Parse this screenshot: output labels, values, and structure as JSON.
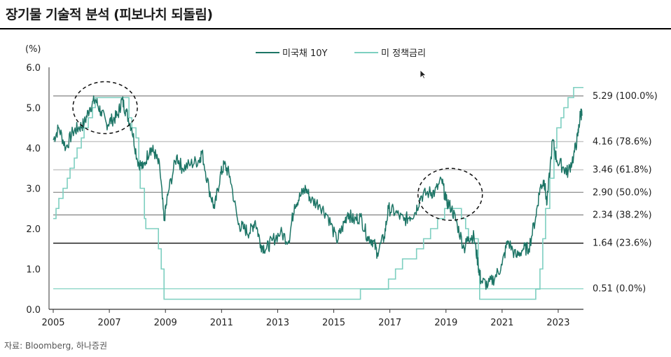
{
  "title": "장기물 기술적 분석 (피보나치 되돌림)",
  "source": "자료: Bloomberg, 하나증권",
  "chart_data": {
    "type": "line",
    "ylabel": "(%)",
    "ylim": [
      0,
      6
    ],
    "y_ticks": [
      "0.0",
      "1.0",
      "2.0",
      "3.0",
      "4.0",
      "5.0",
      "6.0"
    ],
    "xlim": [
      2005,
      2023.9
    ],
    "x_ticks": [
      "2005",
      "2007",
      "2009",
      "2011",
      "2013",
      "2015",
      "2017",
      "2019",
      "2021",
      "2023"
    ],
    "legend_position": "top-center",
    "series": [
      {
        "name": "미국채 10Y",
        "color": "#1d7566",
        "points": [
          [
            2005.0,
            4.2
          ],
          [
            2005.2,
            4.5
          ],
          [
            2005.45,
            4.0
          ],
          [
            2005.7,
            4.4
          ],
          [
            2005.9,
            4.5
          ],
          [
            2006.1,
            4.6
          ],
          [
            2006.3,
            5.0
          ],
          [
            2006.5,
            5.2
          ],
          [
            2006.7,
            4.9
          ],
          [
            2006.9,
            4.6
          ],
          [
            2007.1,
            4.7
          ],
          [
            2007.3,
            4.8
          ],
          [
            2007.45,
            5.2
          ],
          [
            2007.6,
            4.9
          ],
          [
            2007.8,
            4.5
          ],
          [
            2008.0,
            3.7
          ],
          [
            2008.2,
            3.5
          ],
          [
            2008.45,
            4.0
          ],
          [
            2008.6,
            3.9
          ],
          [
            2008.8,
            3.5
          ],
          [
            2008.95,
            2.2
          ],
          [
            2009.1,
            2.9
          ],
          [
            2009.4,
            3.8
          ],
          [
            2009.6,
            3.5
          ],
          [
            2009.9,
            3.6
          ],
          [
            2010.2,
            3.7
          ],
          [
            2010.3,
            3.9
          ],
          [
            2010.55,
            3.0
          ],
          [
            2010.75,
            2.5
          ],
          [
            2010.95,
            3.3
          ],
          [
            2011.1,
            3.6
          ],
          [
            2011.3,
            3.3
          ],
          [
            2011.6,
            2.1
          ],
          [
            2011.8,
            2.0
          ],
          [
            2012.0,
            1.9
          ],
          [
            2012.2,
            2.2
          ],
          [
            2012.4,
            1.6
          ],
          [
            2012.6,
            1.5
          ],
          [
            2012.8,
            1.7
          ],
          [
            2013.1,
            1.9
          ],
          [
            2013.4,
            1.7
          ],
          [
            2013.6,
            2.6
          ],
          [
            2013.8,
            2.8
          ],
          [
            2014.0,
            3.0
          ],
          [
            2014.2,
            2.7
          ],
          [
            2014.5,
            2.6
          ],
          [
            2014.8,
            2.3
          ],
          [
            2015.1,
            1.7
          ],
          [
            2015.3,
            2.0
          ],
          [
            2015.5,
            2.4
          ],
          [
            2015.7,
            2.2
          ],
          [
            2015.95,
            2.3
          ],
          [
            2016.2,
            1.8
          ],
          [
            2016.4,
            1.7
          ],
          [
            2016.55,
            1.4
          ],
          [
            2016.8,
            1.8
          ],
          [
            2016.95,
            2.5
          ],
          [
            2017.2,
            2.4
          ],
          [
            2017.5,
            2.2
          ],
          [
            2017.7,
            2.3
          ],
          [
            2017.9,
            2.4
          ],
          [
            2018.1,
            2.8
          ],
          [
            2018.4,
            2.9
          ],
          [
            2018.6,
            2.9
          ],
          [
            2018.85,
            3.2
          ],
          [
            2019.0,
            2.7
          ],
          [
            2019.2,
            2.5
          ],
          [
            2019.4,
            2.1
          ],
          [
            2019.65,
            1.5
          ],
          [
            2019.8,
            1.8
          ],
          [
            2020.0,
            1.8
          ],
          [
            2020.15,
            1.1
          ],
          [
            2020.25,
            0.7
          ],
          [
            2020.5,
            0.6
          ],
          [
            2020.75,
            0.8
          ],
          [
            2021.0,
            1.1
          ],
          [
            2021.2,
            1.7
          ],
          [
            2021.5,
            1.3
          ],
          [
            2021.75,
            1.5
          ],
          [
            2021.95,
            1.5
          ],
          [
            2022.2,
            2.3
          ],
          [
            2022.35,
            3.0
          ],
          [
            2022.5,
            3.2
          ],
          [
            2022.6,
            2.6
          ],
          [
            2022.8,
            4.2
          ],
          [
            2022.95,
            3.7
          ],
          [
            2023.2,
            3.5
          ],
          [
            2023.35,
            3.4
          ],
          [
            2023.55,
            3.8
          ],
          [
            2023.7,
            4.3
          ],
          [
            2023.8,
            4.9
          ],
          [
            2023.85,
            4.8
          ]
        ]
      },
      {
        "name": "미 정책금리",
        "color": "#7dcfc0",
        "points": [
          [
            2005.0,
            2.25
          ],
          [
            2005.1,
            2.5
          ],
          [
            2005.2,
            2.75
          ],
          [
            2005.35,
            3.0
          ],
          [
            2005.5,
            3.25
          ],
          [
            2005.6,
            3.5
          ],
          [
            2005.75,
            3.75
          ],
          [
            2005.85,
            4.0
          ],
          [
            2006.0,
            4.25
          ],
          [
            2006.1,
            4.5
          ],
          [
            2006.25,
            4.75
          ],
          [
            2006.4,
            5.0
          ],
          [
            2006.5,
            5.25
          ],
          [
            2007.7,
            4.75
          ],
          [
            2007.8,
            4.5
          ],
          [
            2007.95,
            4.25
          ],
          [
            2008.05,
            3.5
          ],
          [
            2008.1,
            3.0
          ],
          [
            2008.25,
            2.25
          ],
          [
            2008.3,
            2.0
          ],
          [
            2008.75,
            1.5
          ],
          [
            2008.85,
            1.0
          ],
          [
            2008.95,
            0.25
          ],
          [
            2015.95,
            0.5
          ],
          [
            2016.95,
            0.75
          ],
          [
            2017.2,
            1.0
          ],
          [
            2017.45,
            1.25
          ],
          [
            2017.95,
            1.5
          ],
          [
            2018.2,
            1.75
          ],
          [
            2018.45,
            2.0
          ],
          [
            2018.7,
            2.25
          ],
          [
            2018.95,
            2.5
          ],
          [
            2019.55,
            2.25
          ],
          [
            2019.7,
            2.0
          ],
          [
            2019.8,
            1.75
          ],
          [
            2020.15,
            1.0
          ],
          [
            2020.2,
            0.25
          ],
          [
            2022.2,
            0.5
          ],
          [
            2022.35,
            1.0
          ],
          [
            2022.45,
            1.75
          ],
          [
            2022.55,
            2.5
          ],
          [
            2022.7,
            3.25
          ],
          [
            2022.85,
            4.0
          ],
          [
            2022.95,
            4.5
          ],
          [
            2023.1,
            4.75
          ],
          [
            2023.2,
            5.0
          ],
          [
            2023.35,
            5.25
          ],
          [
            2023.55,
            5.5
          ],
          [
            2023.9,
            5.5
          ]
        ]
      }
    ],
    "reference_lines": [
      {
        "value": 5.29,
        "label": "5.29 (100.0%)",
        "color": "#777777",
        "width": 1.2
      },
      {
        "value": 4.16,
        "label": "4.16 (78.6%)",
        "color": "#b5b5b5",
        "width": 1.2
      },
      {
        "value": 3.46,
        "label": "3.46 (61.8%)",
        "color": "#b5b5b5",
        "width": 1.2
      },
      {
        "value": 2.9,
        "label": "2.90 (50.0%)",
        "color": "#8c8c8c",
        "width": 1.2
      },
      {
        "value": 2.34,
        "label": "2.34 (38.2%)",
        "color": "#777777",
        "width": 1.2
      },
      {
        "value": 1.64,
        "label": "1.64 (23.6%)",
        "color": "#111111",
        "width": 1.3
      },
      {
        "value": 0.51,
        "label": "0.51 (0.0%)",
        "color": "#8fd6c8",
        "width": 1.3
      }
    ],
    "annotations": [
      {
        "shape": "dashed-ellipse",
        "x_center": 2006.85,
        "y_center": 5.0
      },
      {
        "shape": "dashed-ellipse",
        "x_center": 2019.15,
        "y_center": 2.85
      }
    ]
  }
}
